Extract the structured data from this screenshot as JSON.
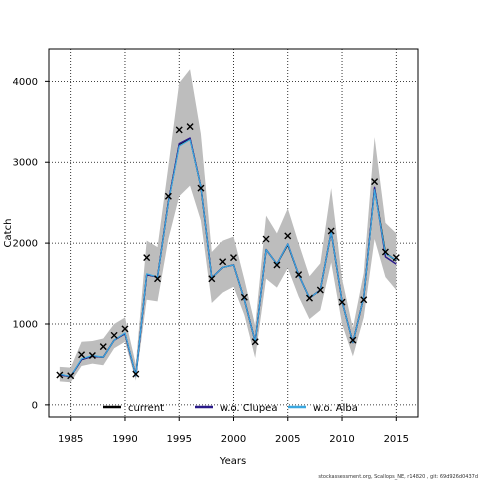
{
  "chart_data": {
    "type": "line",
    "xlabel": "Years",
    "ylabel": "Catch",
    "xlim": [
      1983,
      2017
    ],
    "ylim": [
      -150,
      4400
    ],
    "x_ticks": [
      1985,
      1990,
      1995,
      2000,
      2005,
      2010,
      2015
    ],
    "y_ticks": [
      0,
      1000,
      2000,
      3000,
      4000
    ],
    "grid": true,
    "legend_position": "bottom",
    "years": [
      1984,
      1985,
      1986,
      1987,
      1988,
      1989,
      1990,
      1991,
      1992,
      1993,
      1994,
      1995,
      1996,
      1997,
      1998,
      1999,
      2000,
      2001,
      2002,
      2003,
      2004,
      2005,
      2006,
      2007,
      2008,
      2009,
      2010,
      2011,
      2012,
      2013,
      2014,
      2015
    ],
    "observed": [
      370,
      360,
      620,
      610,
      720,
      860,
      940,
      380,
      1820,
      1560,
      2580,
      3400,
      3440,
      2680,
      1560,
      1770,
      1820,
      1330,
      780,
      2050,
      1730,
      2090,
      1610,
      1320,
      1420,
      2150,
      1270,
      800,
      1300,
      2760,
      1890,
      1820
    ],
    "band": {
      "upper": [
        470,
        460,
        780,
        790,
        820,
        1000,
        1080,
        500,
        2030,
        1950,
        2950,
        3980,
        4150,
        3350,
        1890,
        2030,
        2080,
        1550,
        980,
        2340,
        2120,
        2430,
        2000,
        1590,
        1750,
        2680,
        1560,
        950,
        1630,
        3310,
        2250,
        2120
      ],
      "lower": [
        290,
        280,
        480,
        510,
        490,
        700,
        780,
        300,
        1300,
        1280,
        2050,
        2580,
        2710,
        2280,
        1260,
        1390,
        1460,
        1110,
        580,
        1560,
        1450,
        1690,
        1340,
        1060,
        1170,
        1760,
        1000,
        600,
        1080,
        2050,
        1580,
        1420
      ]
    },
    "series": [
      {
        "name": "current",
        "color": "#000000",
        "values": [
          370,
          350,
          560,
          600,
          590,
          800,
          880,
          360,
          1610,
          1580,
          2510,
          3220,
          3290,
          2700,
          1570,
          1700,
          1730,
          1300,
          780,
          1920,
          1740,
          1980,
          1610,
          1320,
          1420,
          2140,
          1280,
          770,
          1330,
          2680,
          1880,
          1780
        ]
      },
      {
        "name": "w.o. Clupea",
        "color": "#2a1a8a",
        "values": [
          370,
          350,
          560,
          600,
          590,
          800,
          880,
          360,
          1610,
          1580,
          2510,
          3230,
          3300,
          2700,
          1570,
          1700,
          1730,
          1300,
          780,
          1920,
          1740,
          1990,
          1610,
          1320,
          1420,
          2140,
          1280,
          770,
          1330,
          2690,
          1830,
          1740
        ]
      },
      {
        "name": "w.o. Alba",
        "color": "#3aa8e0",
        "values": [
          380,
          350,
          570,
          610,
          590,
          800,
          890,
          360,
          1620,
          1580,
          2500,
          3200,
          3280,
          2700,
          1570,
          1700,
          1730,
          1300,
          780,
          1920,
          1740,
          1990,
          1610,
          1320,
          1420,
          2140,
          1280,
          770,
          1330,
          2660,
          1870,
          1790
        ]
      }
    ]
  },
  "footer": "stockassessment.org, Scallops_NE, r14820 , git: 69d926d0437d"
}
